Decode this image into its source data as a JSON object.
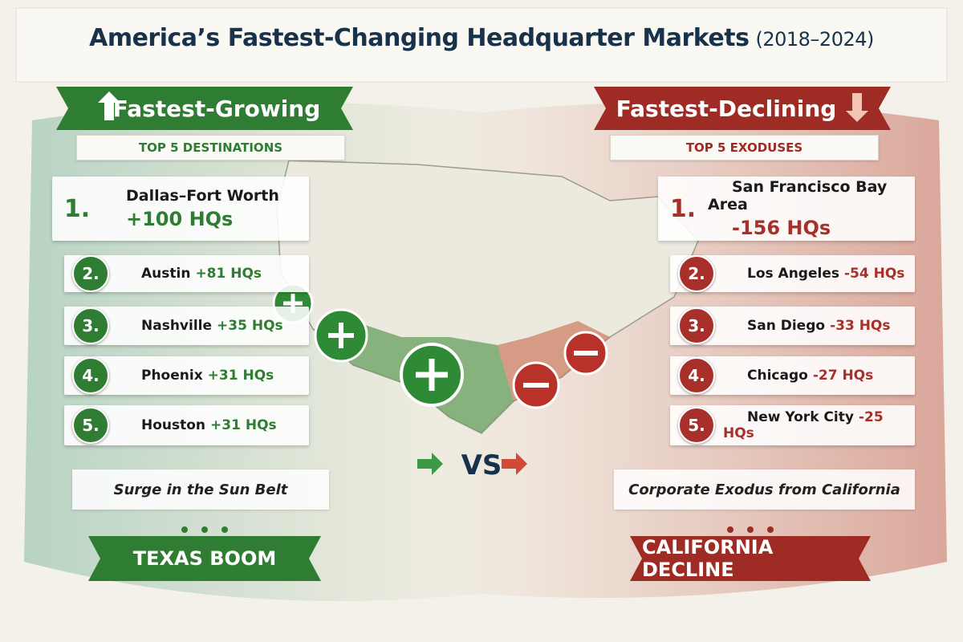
{
  "header": {
    "title": "America’s Fastest-Changing Headquarter Markets",
    "period": "(2018–2024)"
  },
  "left": {
    "heading": "Fastest-Growing",
    "subheading": "TOP 5 DESTINATIONS",
    "items": [
      {
        "rank": "1.",
        "city": "Dallas–Fort Worth",
        "change": "+100 HQs"
      },
      {
        "rank": "2.",
        "city": "Austin",
        "change": "+81 HQs"
      },
      {
        "rank": "3.",
        "city": "Nashville",
        "change": "+35 HQs"
      },
      {
        "rank": "4.",
        "city": "Phoenix",
        "change": "+31 HQs"
      },
      {
        "rank": "5.",
        "city": "Houston",
        "change": "+31 HQs"
      }
    ],
    "tagline": "Surge in the Sun Belt",
    "banner": "TEXAS BOOM"
  },
  "center": {
    "label": "VS"
  },
  "right": {
    "heading": "Fastest-Declining",
    "subheading": "TOP 5 EXODUSES",
    "items": [
      {
        "rank": "1.",
        "city": "San Francisco Bay Area",
        "change": "-156 HQs"
      },
      {
        "rank": "2.",
        "city": "Los Angeles",
        "change": "-54 HQs"
      },
      {
        "rank": "3.",
        "city": "San Diego",
        "change": "-33 HQs"
      },
      {
        "rank": "4.",
        "city": "Chicago",
        "change": "-27 HQs"
      },
      {
        "rank": "5.",
        "city": "New York City",
        "change": "-25 HQs"
      }
    ],
    "tagline": "Corporate Exodus from California",
    "banner": "CALIFORNIA DECLINE"
  }
}
